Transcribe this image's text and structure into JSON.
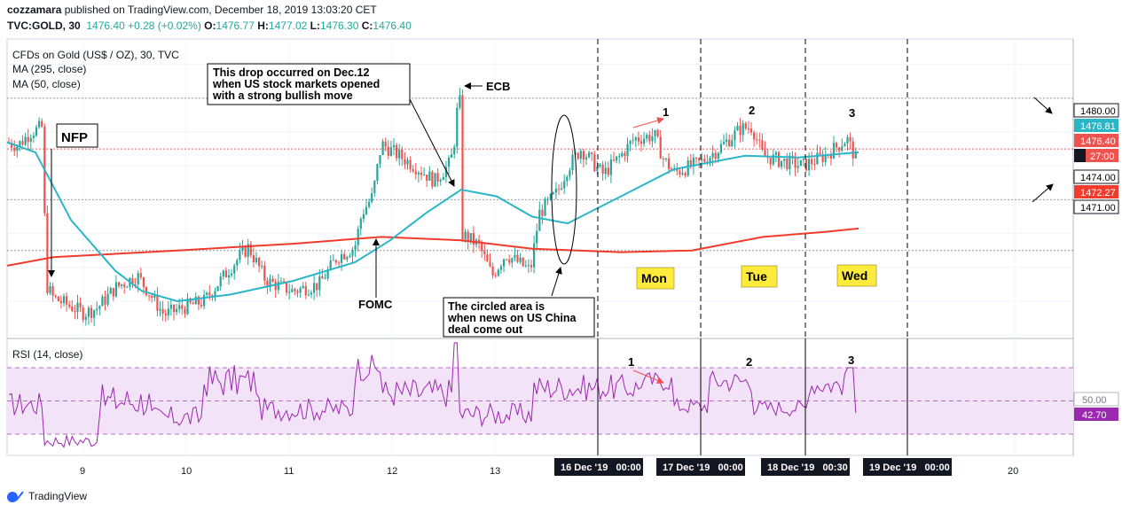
{
  "header": {
    "author": "cozzamara",
    "published_text": " published on TradingView.com, December 18, 2019 13:03:20 CET",
    "symbol": "TVC:GOLD, 30",
    "last": "1476.40",
    "change": "+0.28 (+0.02%)",
    "o_label": "O:",
    "o_value": "1476.77",
    "h_label": "H:",
    "h_value": "1477.02",
    "l_label": "L:",
    "l_value": "1476.30",
    "c_label": "C:",
    "c_value": "1476.40"
  },
  "legend": {
    "title": "CFDs on Gold (US$ / OZ), 30, TVC",
    "ma1": "MA (295, close)",
    "ma2": "MA (50, close)",
    "rsi": "RSI (14, close)"
  },
  "footer": {
    "brand": "TradingView"
  },
  "colors": {
    "bull": "#26a69a",
    "bear": "#ef5350",
    "ma_slow": "#f23b2c",
    "ma_fast": "#2bb6c8",
    "rsi": "#9c27b0",
    "rsi_band": "#f3e3f8"
  },
  "annotations": {
    "nfp": "NFP",
    "ecb": "ECB",
    "fomc": "FOMC",
    "drop_note": [
      "This drop occurred on Dec.12",
      "when US stock markets opened",
      "with a strong bullish move"
    ],
    "circle_note": [
      "The circled area is",
      "when news on US China",
      "deal come out"
    ],
    "days": [
      "Mon",
      "Tue",
      "Wed"
    ],
    "peaks": [
      "1",
      "2",
      "3"
    ]
  },
  "chart_data": {
    "type": "candlestick",
    "x_tick_labels": [
      "9",
      "10",
      "11",
      "12",
      "13",
      "20"
    ],
    "x_date_labels": [
      "16 Dec '19   00:00",
      "17 Dec '19   00:00",
      "18 Dec '19   00:30",
      "19 Dec '19   00:00"
    ],
    "y_axis": {
      "ylim": [
        1465.8,
        1483.5
      ],
      "tick_labels": [
        "1480.00",
        "1476.81",
        "1476.40",
        "1474.00",
        "1472.27",
        "1471.00"
      ],
      "partial_label": "27:00"
    },
    "key_levels": [
      1480.0,
      1477.0,
      1474.0,
      1471.0
    ],
    "current": {
      "price": 1476.4,
      "ma_fast": 1476.81,
      "ma_slow": 1472.27
    },
    "key_points": [
      {
        "x": "Dec 6 (NFP)",
        "price": 1478.0
      },
      {
        "x": "Dec 10",
        "price": 1466.8
      },
      {
        "x": "Dec 11 (FOMC)",
        "price": 1467.5
      },
      {
        "x": "Dec 12 (ECB)",
        "price": 1481.7
      },
      {
        "x": "Dec 13",
        "price": 1468.7
      },
      {
        "x": "Dec 16 (1)",
        "price": 1478.5
      },
      {
        "x": "Dec 17 (2)",
        "price": 1479.0
      },
      {
        "x": "Dec 18 (3)",
        "price": 1477.8
      }
    ],
    "rsi": {
      "ylim": [
        0,
        100
      ],
      "levels": [
        30,
        50,
        70
      ],
      "last_label": "42.70",
      "mid_label": "50.00",
      "last": 42.7
    }
  }
}
